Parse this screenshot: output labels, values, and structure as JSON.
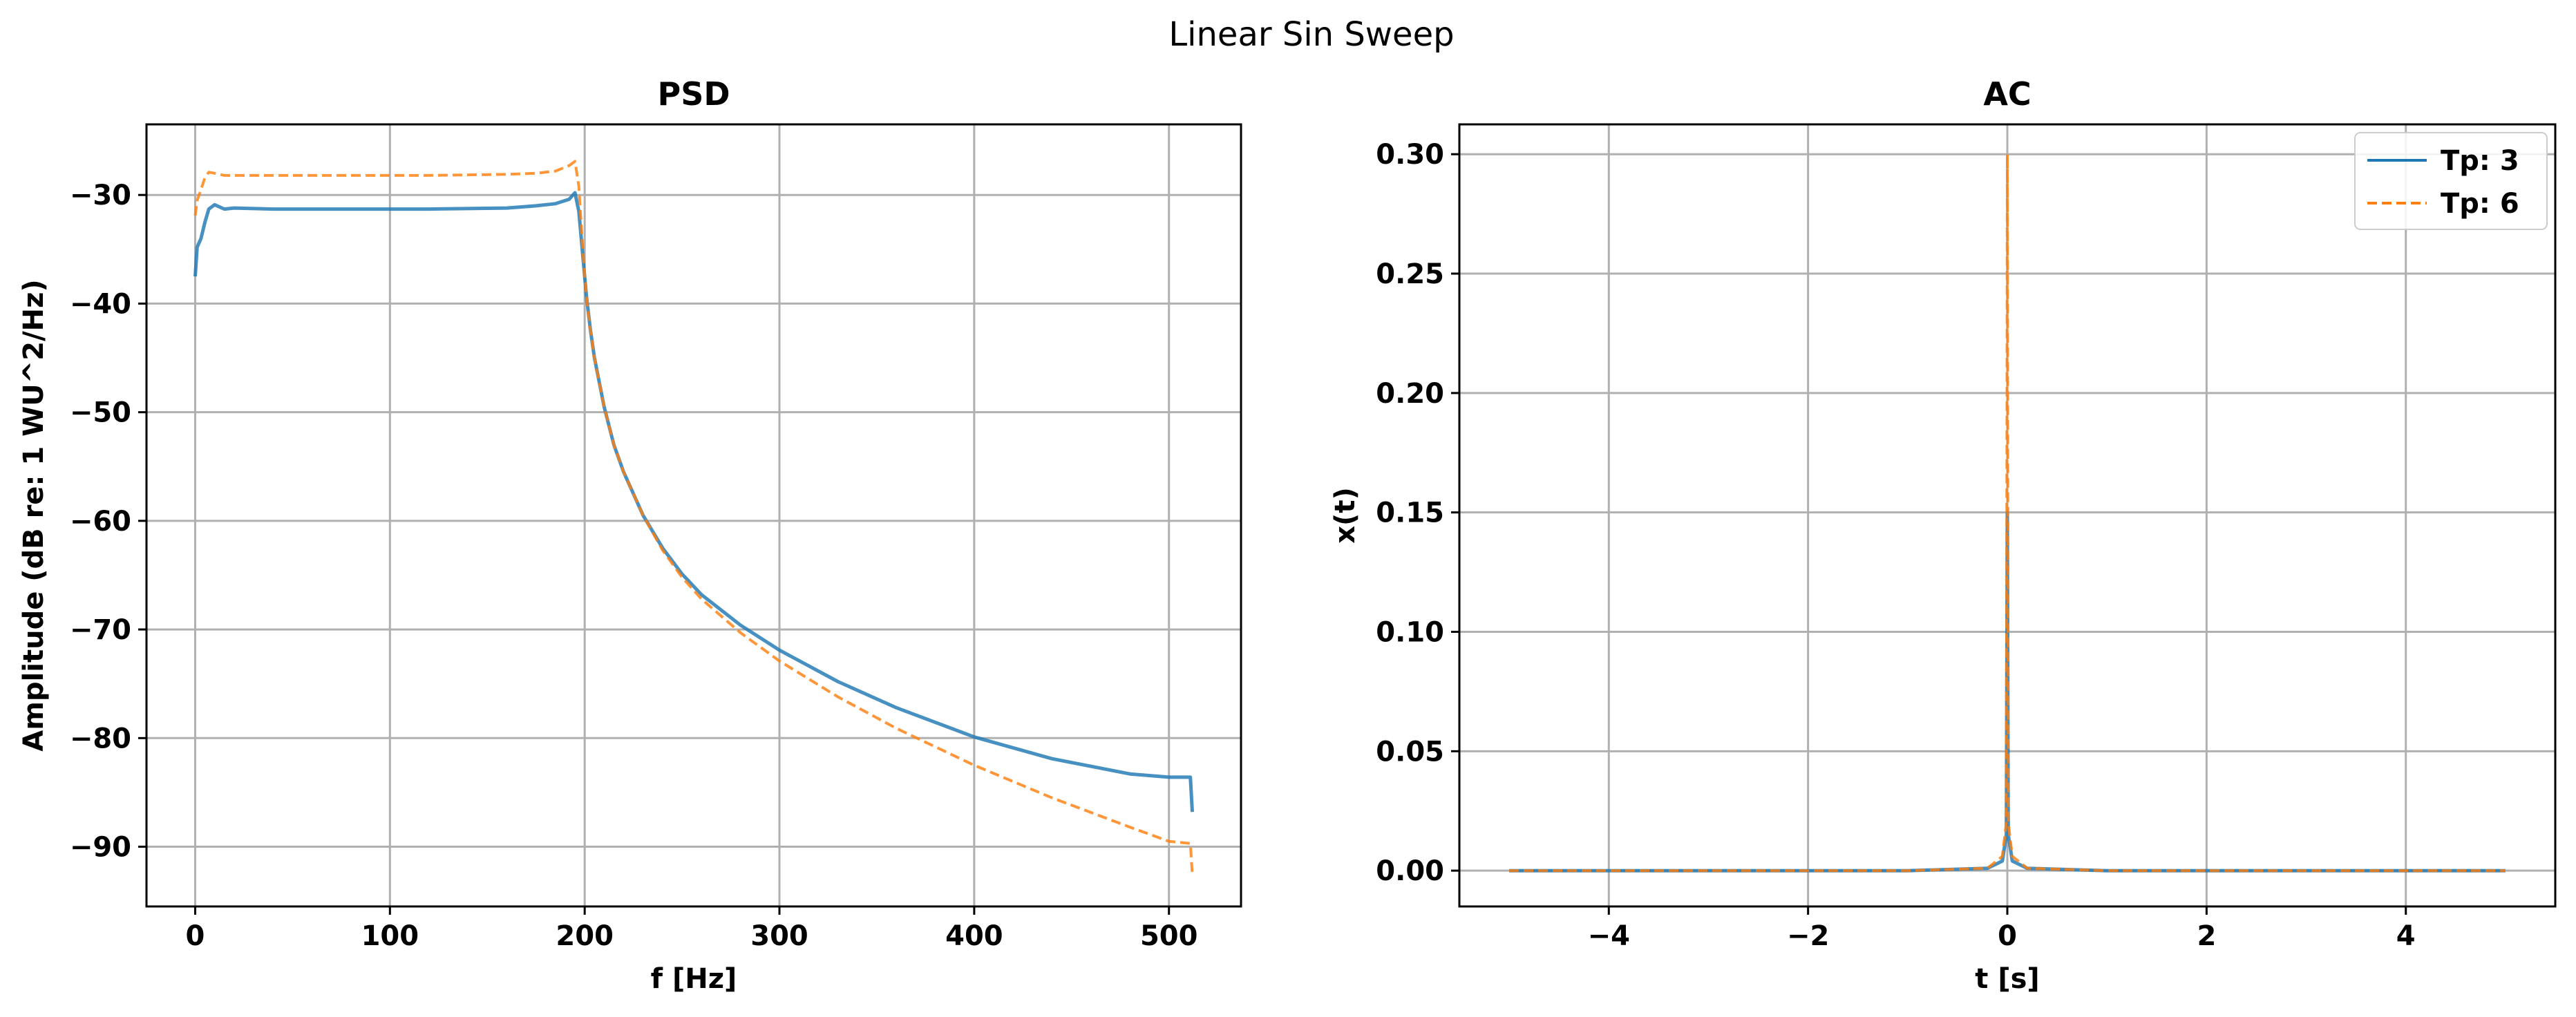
{
  "figure": {
    "suptitle": "Linear Sin Sweep"
  },
  "colors": {
    "series1": "#1f77b4",
    "series2": "#ff7f0e",
    "grid": "#b0b0b0",
    "axes": "#000000"
  },
  "chart_data": [
    {
      "type": "line",
      "title": "PSD",
      "xlabel": "f [Hz]",
      "ylabel": "Amplitude (dB re: 1 WU^2/Hz)",
      "xlim": [
        -25,
        537
      ],
      "ylim": [
        -95.5,
        -23.5
      ],
      "xticks": [
        0,
        100,
        200,
        300,
        400,
        500
      ],
      "xtick_labels": [
        "0",
        "100",
        "200",
        "300",
        "400",
        "500"
      ],
      "yticks": [
        -30,
        -40,
        -50,
        -60,
        -70,
        -80,
        -90
      ],
      "ytick_labels": [
        "−30",
        "−40",
        "−50",
        "−60",
        "−70",
        "−80",
        "−90"
      ],
      "grid": true,
      "series": [
        {
          "name": "Tp: 3",
          "style": "solid",
          "x": [
            0,
            1,
            3,
            5,
            7,
            10,
            15,
            20,
            40,
            80,
            120,
            160,
            175,
            185,
            192,
            195,
            197,
            199,
            201,
            203,
            205,
            210,
            215,
            220,
            230,
            240,
            250,
            260,
            280,
            300,
            330,
            360,
            400,
            440,
            480,
            500,
            511,
            512
          ],
          "y": [
            -37.5,
            -34.8,
            -34,
            -32.5,
            -31.3,
            -30.9,
            -31.3,
            -31.2,
            -31.3,
            -31.3,
            -31.3,
            -31.2,
            -31.0,
            -30.8,
            -30.4,
            -29.8,
            -31.5,
            -35.5,
            -39.5,
            -42.5,
            -45,
            -49.5,
            -53,
            -55.5,
            -59.5,
            -62.5,
            -64.9,
            -66.8,
            -69.6,
            -71.9,
            -74.8,
            -77.2,
            -79.9,
            -81.9,
            -83.3,
            -83.6,
            -83.6,
            -86.8
          ]
        },
        {
          "name": "Tp: 6",
          "style": "dashed",
          "x": [
            0,
            1,
            3,
            5,
            7,
            10,
            15,
            20,
            40,
            80,
            120,
            160,
            175,
            185,
            192,
            195,
            197,
            199,
            201,
            203,
            205,
            210,
            215,
            220,
            230,
            240,
            250,
            260,
            280,
            300,
            330,
            360,
            400,
            440,
            480,
            500,
            511,
            512
          ],
          "y": [
            -31.9,
            -30.5,
            -29.5,
            -28.4,
            -27.9,
            -28.0,
            -28.2,
            -28.2,
            -28.2,
            -28.2,
            -28.2,
            -28.1,
            -28.0,
            -27.8,
            -27.3,
            -26.9,
            -29.2,
            -35,
            -39.5,
            -42.5,
            -45,
            -49.5,
            -53,
            -55.5,
            -59.5,
            -62.7,
            -65.2,
            -67.2,
            -70.3,
            -72.9,
            -76.2,
            -79.1,
            -82.5,
            -85.5,
            -88.2,
            -89.5,
            -89.7,
            -92.5
          ]
        }
      ]
    },
    {
      "type": "line",
      "title": "AC",
      "xlabel": "t [s]",
      "ylabel": "x(t)",
      "xlim": [
        -5.5,
        5.5
      ],
      "ylim": [
        -0.015,
        0.3125
      ],
      "xticks": [
        -4,
        -2,
        0,
        2,
        4
      ],
      "xtick_labels": [
        "−4",
        "−2",
        "0",
        "2",
        "4"
      ],
      "yticks": [
        0.0,
        0.05,
        0.1,
        0.15,
        0.2,
        0.25,
        0.3
      ],
      "ytick_labels": [
        "0.00",
        "0.05",
        "0.10",
        "0.15",
        "0.20",
        "0.25",
        "0.30"
      ],
      "grid": true,
      "legend": {
        "placement": "top-right"
      },
      "series": [
        {
          "name": "Tp: 3",
          "style": "solid",
          "x": [
            -5,
            -1,
            -0.2,
            -0.05,
            -0.01,
            0,
            0.01,
            0.05,
            0.2,
            1,
            5
          ],
          "y": [
            0,
            0,
            0.001,
            0.004,
            0.015,
            0.15,
            0.015,
            0.004,
            0.001,
            0,
            0
          ]
        },
        {
          "name": "Tp: 6",
          "style": "dashed",
          "x": [
            -5,
            -1,
            -0.2,
            -0.05,
            -0.01,
            0,
            0.01,
            0.05,
            0.2,
            1,
            5
          ],
          "y": [
            0,
            0,
            0.001,
            0.006,
            0.02,
            0.3,
            0.02,
            0.006,
            0.001,
            0,
            0
          ]
        }
      ]
    }
  ]
}
